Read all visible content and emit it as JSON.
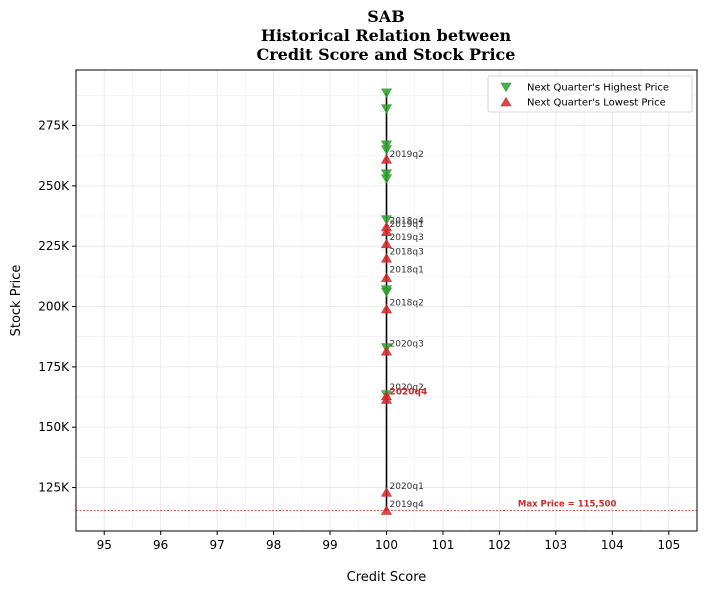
{
  "chart_data": {
    "type": "scatter",
    "title_lines": [
      "SAB",
      "Historical Relation between",
      "Credit Score and Stock Price"
    ],
    "xlabel": "Credit Score",
    "ylabel": "Stock Price",
    "xlim": [
      94.5,
      105.5
    ],
    "ylim": [
      107000,
      298000
    ],
    "x_ticks": [
      95,
      96,
      97,
      98,
      99,
      100,
      101,
      102,
      103,
      104,
      105
    ],
    "y_ticks": [
      125000,
      150000,
      175000,
      200000,
      225000,
      250000,
      275000
    ],
    "y_tick_labels": [
      "125K",
      "150K",
      "175K",
      "200K",
      "225K",
      "250K",
      "275K"
    ],
    "grid": true,
    "legend_position": "top-right",
    "colors": {
      "high": "#2ca02c",
      "low": "#d62728",
      "line": "#000000"
    },
    "series": [
      {
        "name": "Next Quarter's Highest Price",
        "marker": "triangle-down",
        "points": [
          {
            "x": 100,
            "y": 288500
          },
          {
            "x": 100,
            "y": 282000
          },
          {
            "x": 100,
            "y": 267000
          },
          {
            "x": 100,
            "y": 265000
          },
          {
            "x": 100,
            "y": 255000
          },
          {
            "x": 100,
            "y": 253000
          },
          {
            "x": 100,
            "y": 236000
          },
          {
            "x": 100,
            "y": 207000
          },
          {
            "x": 100,
            "y": 206000
          },
          {
            "x": 100,
            "y": 183000
          },
          {
            "x": 100,
            "y": 163500
          }
        ]
      },
      {
        "name": "Next Quarter's Lowest Price",
        "marker": "triangle-up",
        "points": [
          {
            "x": 100,
            "y": 261000
          },
          {
            "x": 100,
            "y": 233000
          },
          {
            "x": 100,
            "y": 231000
          },
          {
            "x": 100,
            "y": 226000
          },
          {
            "x": 100,
            "y": 220000
          },
          {
            "x": 100,
            "y": 212000
          },
          {
            "x": 100,
            "y": 199000
          },
          {
            "x": 100,
            "y": 181500
          },
          {
            "x": 100,
            "y": 163000
          },
          {
            "x": 100,
            "y": 161500
          },
          {
            "x": 100,
            "y": 123000
          },
          {
            "x": 100,
            "y": 115500
          }
        ]
      }
    ],
    "vertical_line": {
      "x": 100,
      "y_from": 115500,
      "y_to": 288500
    },
    "annotations": [
      {
        "text": "2019q2",
        "x": 100,
        "y": 262000,
        "highlight": false
      },
      {
        "text": "2018q4",
        "x": 100,
        "y": 234500,
        "highlight": false
      },
      {
        "text": "2019q1",
        "x": 100,
        "y": 233000,
        "highlight": false
      },
      {
        "text": "2019q3",
        "x": 100,
        "y": 227500,
        "highlight": false
      },
      {
        "text": "2018q3",
        "x": 100,
        "y": 221500,
        "highlight": false
      },
      {
        "text": "2018q1",
        "x": 100,
        "y": 214000,
        "highlight": false
      },
      {
        "text": "2018q2",
        "x": 100,
        "y": 200500,
        "highlight": false
      },
      {
        "text": "2020q3",
        "x": 100,
        "y": 183500,
        "highlight": false
      },
      {
        "text": "2020q2",
        "x": 100,
        "y": 165500,
        "highlight": false
      },
      {
        "text": "2020q4",
        "x": 100,
        "y": 163500,
        "highlight": true
      },
      {
        "text": "2020q1",
        "x": 100,
        "y": 124500,
        "highlight": false
      },
      {
        "text": "2019q4",
        "x": 100,
        "y": 117000,
        "highlight": false
      }
    ],
    "max_price_line": {
      "y": 115500,
      "label": "Max Price = 115,500",
      "label_x": 103.2
    }
  }
}
